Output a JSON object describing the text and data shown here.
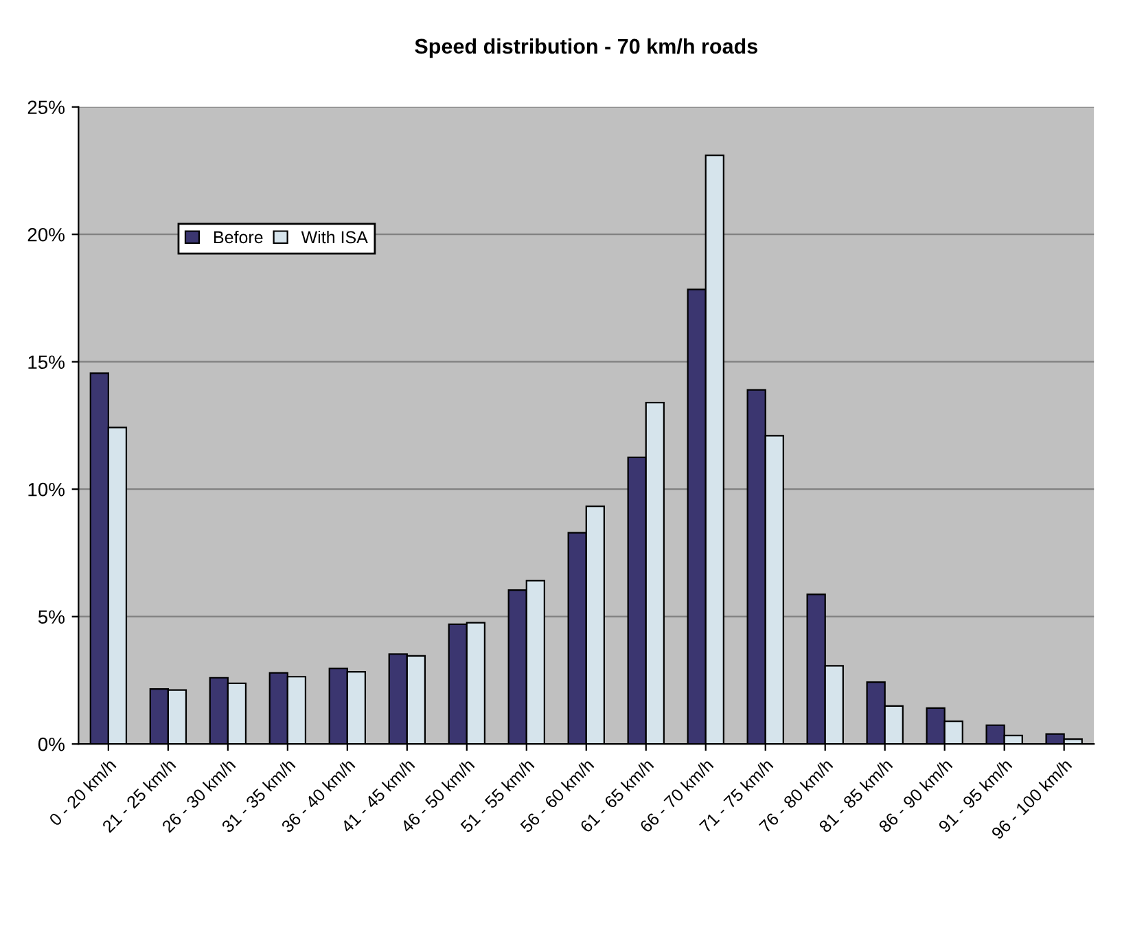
{
  "chart_data": {
    "type": "bar",
    "title": "Speed distribution - 70 km/h roads",
    "categories": [
      "0 - 20 km/h",
      "21 - 25 km/h",
      "26 - 30 km/h",
      "31 - 35 km/h",
      "36 - 40 km/h",
      "41 - 45 km/h",
      "46 - 50 km/h",
      "51 - 55 km/h",
      "56 - 60 km/h",
      "61 - 65 km/h",
      "66 - 70 km/h",
      "71 - 75 km/h",
      "76 - 80 km/h",
      "81 - 85 km/h",
      "86 - 90 km/h",
      "91 - 95 km/h",
      "96 - 100 km/h"
    ],
    "series": [
      {
        "name": "Before",
        "color": "#3b3670",
        "values": [
          14.55,
          2.16,
          2.6,
          2.79,
          2.97,
          3.53,
          4.7,
          6.04,
          8.29,
          11.25,
          17.84,
          13.9,
          5.87,
          2.43,
          1.41,
          0.74,
          0.39
        ]
      },
      {
        "name": "With ISA",
        "color": "#d6e4ec",
        "values": [
          12.42,
          2.12,
          2.38,
          2.64,
          2.83,
          3.46,
          4.76,
          6.41,
          9.33,
          13.4,
          23.1,
          12.1,
          3.07,
          1.49,
          0.89,
          0.33,
          0.19
        ]
      }
    ],
    "ylim": [
      0,
      25
    ],
    "yticks": [
      {
        "value": 0,
        "label": "0%"
      },
      {
        "value": 5,
        "label": "5%"
      },
      {
        "value": 10,
        "label": "10%"
      },
      {
        "value": 15,
        "label": "15%"
      },
      {
        "value": 20,
        "label": "20%"
      },
      {
        "value": 25,
        "label": "25%"
      }
    ],
    "grid": "y",
    "legend": "top left"
  }
}
